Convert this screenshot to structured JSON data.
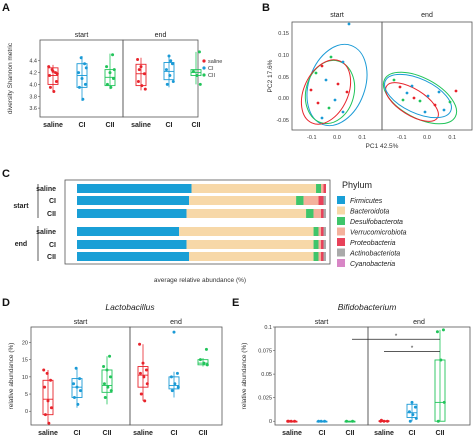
{
  "colors": {
    "saline": "#e8232b",
    "CI": "#1a9ad6",
    "CII": "#21c45a",
    "frame": "#555555"
  },
  "panels": {
    "A": {
      "label": "A"
    },
    "B": {
      "label": "B"
    },
    "C": {
      "label": "C"
    },
    "D": {
      "label": "D"
    },
    "E": {
      "label": "E"
    }
  },
  "chart_data": [
    {
      "id": "A",
      "type": "box",
      "ylabel": "diversity Shannon metric",
      "ylim": [
        3.45,
        4.75
      ],
      "yticks": [
        "3.6",
        "3.8",
        "4.0",
        "4.2",
        "4.4"
      ],
      "facets": [
        "start",
        "end"
      ],
      "categories": [
        "saline",
        "CI",
        "CII"
      ],
      "legend": [
        "saline",
        "CI",
        "CII"
      ],
      "groups": [
        {
          "facet": "start",
          "cat": "saline",
          "box": [
            4.0,
            4.15,
            4.28
          ],
          "whisk": [
            3.88,
            4.33
          ],
          "points": [
            4.3,
            4.25,
            4.2,
            4.15,
            4.22,
            4.05,
            3.95,
            3.88,
            4.18
          ]
        },
        {
          "facet": "start",
          "cat": "CI",
          "box": [
            3.95,
            4.15,
            4.35
          ],
          "whisk": [
            3.72,
            4.48
          ],
          "points": [
            4.45,
            4.35,
            4.2,
            4.1,
            4.0,
            3.95,
            3.75,
            4.28
          ]
        },
        {
          "facet": "start",
          "cat": "CII",
          "box": [
            3.98,
            4.12,
            4.25
          ],
          "whisk": [
            3.92,
            4.52
          ],
          "points": [
            4.5,
            4.3,
            4.2,
            4.1,
            4.0,
            3.95,
            4.25
          ]
        },
        {
          "facet": "end",
          "cat": "saline",
          "box": [
            3.98,
            4.18,
            4.34
          ],
          "whisk": [
            3.9,
            4.45
          ],
          "points": [
            4.42,
            4.3,
            4.18,
            4.05,
            3.98,
            3.92,
            4.25
          ]
        },
        {
          "facet": "end",
          "cat": "CI",
          "box": [
            4.08,
            4.22,
            4.37
          ],
          "whisk": [
            3.95,
            4.5
          ],
          "points": [
            4.48,
            4.35,
            4.25,
            4.15,
            4.05,
            4.0,
            4.4
          ]
        },
        {
          "facet": "end",
          "cat": "CII",
          "box": [
            4.15,
            4.2,
            4.25
          ],
          "whisk": [
            4.0,
            4.55
          ],
          "points": [
            4.55,
            4.22,
            4.15,
            4.0
          ]
        }
      ]
    },
    {
      "id": "B",
      "type": "scatter",
      "xlabel": "PC1 42.5%",
      "ylabel": "PC2 17.6%",
      "facets": [
        "start",
        "end"
      ],
      "xticks": [
        "-0.1",
        "0.0",
        "0.1"
      ],
      "yticks": [
        "0.15",
        "0.10",
        "0.05",
        "0.00",
        "-0.05"
      ]
    },
    {
      "id": "C",
      "type": "stacked-bar",
      "xlabel": "average relative abundance (%)",
      "legend_title": "Phylum",
      "phyla": [
        "Firmicutes",
        "Bacteroidota",
        "Desulfobacterota",
        "Verrucomicrobiota",
        "Proteobacteria",
        "Actinobacteriota",
        "Cyanobacteria"
      ],
      "phyla_colors": [
        "#199fd6",
        "#f7d8a8",
        "#3fc56a",
        "#f4b19c",
        "#e8425a",
        "#aaaaaa",
        "#d886c6"
      ],
      "groups": [
        "start",
        "end"
      ],
      "rows": [
        {
          "group": "start",
          "label": "saline",
          "values": [
            46,
            50,
            2,
            1,
            1,
            0,
            0
          ]
        },
        {
          "group": "start",
          "label": "CI",
          "values": [
            45,
            43,
            3,
            6,
            2,
            1,
            0
          ]
        },
        {
          "group": "start",
          "label": "CII",
          "values": [
            44,
            48,
            3,
            3,
            1,
            1,
            0
          ]
        },
        {
          "group": "end",
          "label": "saline",
          "values": [
            41,
            54,
            2,
            1,
            1,
            1,
            0
          ]
        },
        {
          "group": "end",
          "label": "CI",
          "values": [
            44,
            51,
            2,
            1,
            1,
            1,
            0
          ]
        },
        {
          "group": "end",
          "label": "CII",
          "values": [
            45,
            50,
            2,
            1,
            1,
            1,
            0
          ]
        }
      ]
    },
    {
      "id": "D",
      "type": "box",
      "title": "Lactobacillus",
      "ylabel": "relative abundance (%)",
      "ylim": [
        -4,
        24.5
      ],
      "yticks": [
        "0",
        "5",
        "10",
        "15",
        "20"
      ],
      "facets": [
        "start",
        "end"
      ],
      "categories": [
        "saline",
        "CI",
        "CII"
      ],
      "groups": [
        {
          "facet": "start",
          "cat": "saline",
          "box": [
            -1,
            3.5,
            9
          ],
          "whisk": [
            -3.5,
            12
          ],
          "points": [
            12,
            11,
            9,
            7,
            3,
            1,
            -1,
            -3.5
          ]
        },
        {
          "facet": "start",
          "cat": "CI",
          "box": [
            4,
            7,
            9.5
          ],
          "whisk": [
            1,
            12.5
          ],
          "points": [
            12.5,
            9.5,
            8,
            7,
            6,
            4,
            2
          ]
        },
        {
          "facet": "start",
          "cat": "CII",
          "box": [
            5.5,
            7.5,
            12
          ],
          "whisk": [
            2,
            16
          ],
          "points": [
            16,
            13,
            12,
            10,
            8,
            7,
            6,
            4
          ]
        },
        {
          "facet": "end",
          "cat": "saline",
          "box": [
            7,
            10.5,
            13
          ],
          "whisk": [
            3,
            19.5
          ],
          "points": [
            19.5,
            14,
            12,
            11,
            10,
            8,
            5,
            3
          ]
        },
        {
          "facet": "end",
          "cat": "CI",
          "box": [
            6.5,
            7.5,
            10
          ],
          "whisk": [
            4,
            11.5
          ],
          "points": [
            23,
            11,
            10,
            8,
            7,
            6
          ]
        },
        {
          "facet": "end",
          "cat": "CII",
          "box": [
            13.5,
            14,
            15
          ],
          "whisk": [
            13,
            15.5
          ],
          "points": [
            18,
            15,
            14,
            13.5
          ]
        }
      ]
    },
    {
      "id": "E",
      "type": "box",
      "title": "Bifidobacterium",
      "ylabel": "relative abundance (%)",
      "ylim": [
        -0.004,
        0.1
      ],
      "yticks": [
        "0",
        "0.025",
        "0.05",
        "0.075",
        "0.1"
      ],
      "facets": [
        "start",
        "end"
      ],
      "categories": [
        "saline",
        "CI",
        "CII"
      ],
      "annotations": [
        "*",
        "*"
      ],
      "groups": [
        {
          "facet": "start",
          "cat": "saline",
          "box": [
            0,
            0,
            0
          ],
          "whisk": [
            0,
            0
          ],
          "points": [
            0,
            0,
            0,
            0
          ]
        },
        {
          "facet": "start",
          "cat": "CI",
          "box": [
            0,
            0,
            0
          ],
          "whisk": [
            0,
            0
          ],
          "points": [
            0,
            0,
            0
          ]
        },
        {
          "facet": "start",
          "cat": "CII",
          "box": [
            0,
            0,
            0
          ],
          "whisk": [
            0,
            0
          ],
          "points": [
            0,
            0
          ]
        },
        {
          "facet": "end",
          "cat": "saline",
          "box": [
            0,
            0,
            0.0005
          ],
          "whisk": [
            0,
            0.001
          ],
          "points": [
            0,
            0,
            0,
            0.001
          ]
        },
        {
          "facet": "end",
          "cat": "CI",
          "box": [
            0.004,
            0.009,
            0.018
          ],
          "whisk": [
            0,
            0.02
          ],
          "points": [
            0.02,
            0.015,
            0.01,
            0.007,
            0.003,
            0.0
          ]
        },
        {
          "facet": "end",
          "cat": "CII",
          "box": [
            0,
            0.02,
            0.065
          ],
          "whisk": [
            0,
            0.097
          ],
          "points": [
            0.097,
            0.095,
            0.065,
            0.02,
            0
          ]
        }
      ]
    }
  ]
}
